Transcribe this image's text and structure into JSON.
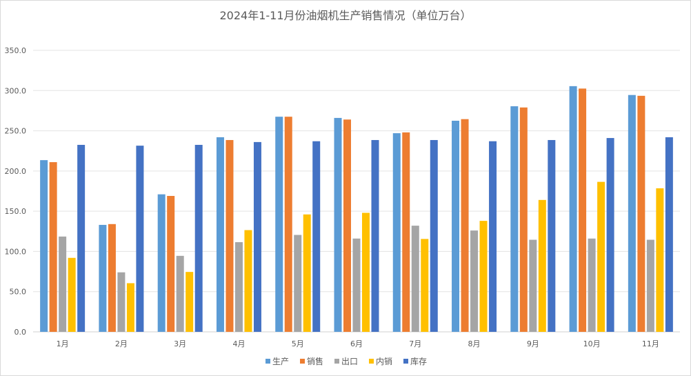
{
  "chart_data": {
    "type": "bar",
    "title": "2024年1-11月份油烟机生产销售情况（单位万台）",
    "xlabel": "",
    "ylabel": "",
    "categories": [
      "1月",
      "2月",
      "3月",
      "4月",
      "5月",
      "6月",
      "7月",
      "8月",
      "9月",
      "10月",
      "11月"
    ],
    "ylim": [
      0,
      350
    ],
    "yticks": [
      "0.0",
      "50.0",
      "100.0",
      "150.0",
      "200.0",
      "250.0",
      "300.0",
      "350.0"
    ],
    "grid": true,
    "legend_position": "bottom",
    "series": [
      {
        "name": "生产",
        "color": "#5B9BD5",
        "values": [
          213.5,
          133.0,
          171.0,
          242.0,
          267.5,
          266.0,
          247.0,
          262.5,
          280.5,
          305.5,
          294.5
        ]
      },
      {
        "name": "销售",
        "color": "#ED7D31",
        "values": [
          211.0,
          134.0,
          169.0,
          238.5,
          267.5,
          264.0,
          248.0,
          264.5,
          279.0,
          302.5,
          293.5
        ]
      },
      {
        "name": "出口",
        "color": "#A5A5A5",
        "values": [
          118.5,
          74.0,
          94.5,
          111.5,
          120.5,
          116.0,
          132.0,
          126.0,
          114.5,
          116.0,
          114.5
        ]
      },
      {
        "name": "内销",
        "color": "#FFC000",
        "values": [
          92.0,
          60.5,
          74.5,
          126.5,
          146.0,
          148.0,
          115.5,
          138.0,
          164.0,
          186.5,
          178.5
        ]
      },
      {
        "name": "库存",
        "color": "#4472C4",
        "values": [
          232.5,
          231.5,
          232.5,
          236.0,
          237.0,
          238.5,
          238.5,
          237.0,
          238.5,
          241.0,
          242.0
        ]
      }
    ]
  }
}
